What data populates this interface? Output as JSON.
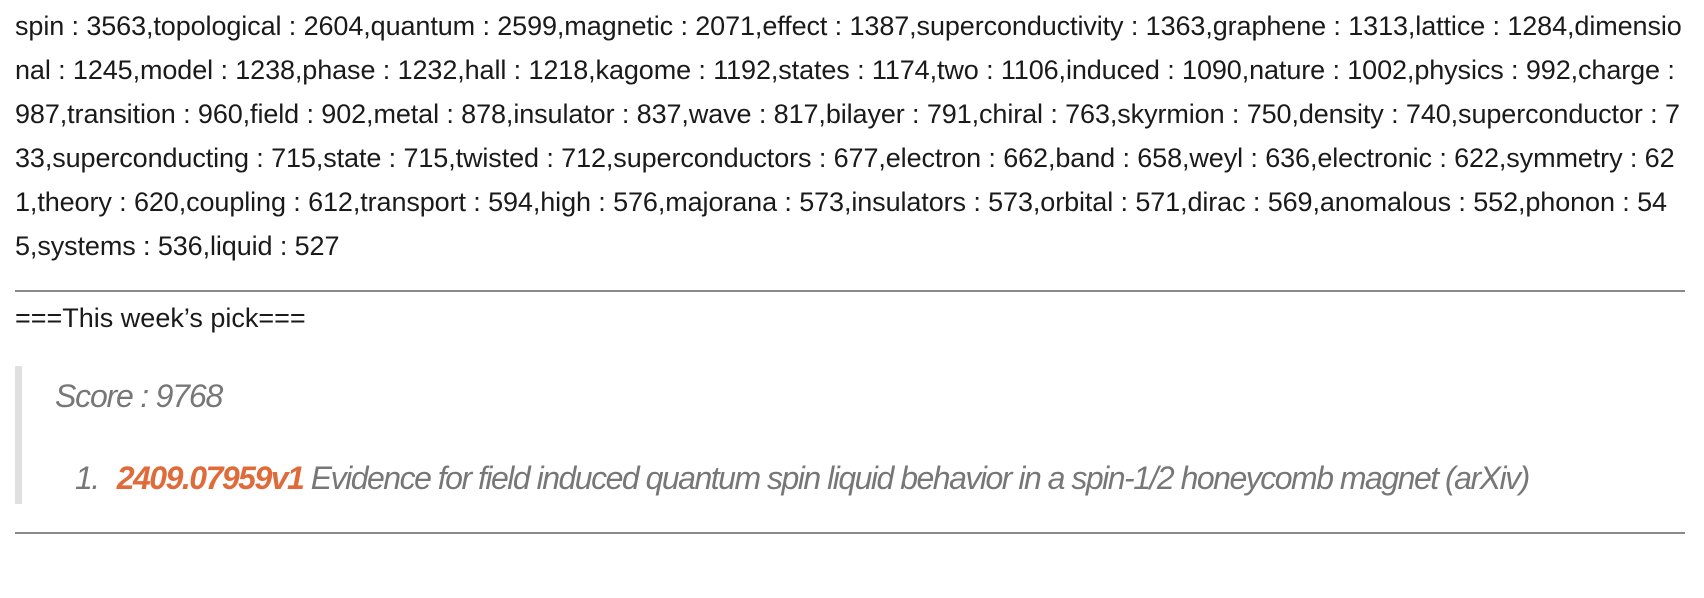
{
  "keyword_counts": "spin : 3563,topological : 2604,quantum : 2599,magnetic : 2071,effect : 1387,superconductivity : 1363,graphene : 1313,lattice : 1284,dimensional : 1245,model : 1238,phase : 1232,hall : 1218,kagome : 1192,states : 1174,two : 1106,induced : 1090,nature : 1002,physics : 992,charge : 987,transition : 960,field : 902,metal : 878,insulator : 837,wave : 817,bilayer : 791,chiral : 763,skyrmion : 750,density : 740,superconductor : 733,superconducting : 715,state : 715,twisted : 712,superconductors : 677,electron : 662,band : 658,weyl : 636,electronic : 622,symmetry : 621,theory : 620,coupling : 612,transport : 594,high : 576,majorana : 573,insulators : 573,orbital : 571,dirac : 569,anomalous : 552,phonon : 545,systems : 536,liquid : 527",
  "pick_heading": "===This week’s pick===",
  "pick": {
    "score": "Score : 9768",
    "items": [
      {
        "number": "1.",
        "id": "2409.07959v1",
        "title": "Evidence for field induced quantum spin liquid behavior in a spin-1/2 honeycomb magnet (arXiv)"
      }
    ]
  },
  "colors": {
    "link": "#e06b3a",
    "quote_text": "#777777",
    "quote_border": "#e0e0e0",
    "rule": "#8a8a8a"
  }
}
